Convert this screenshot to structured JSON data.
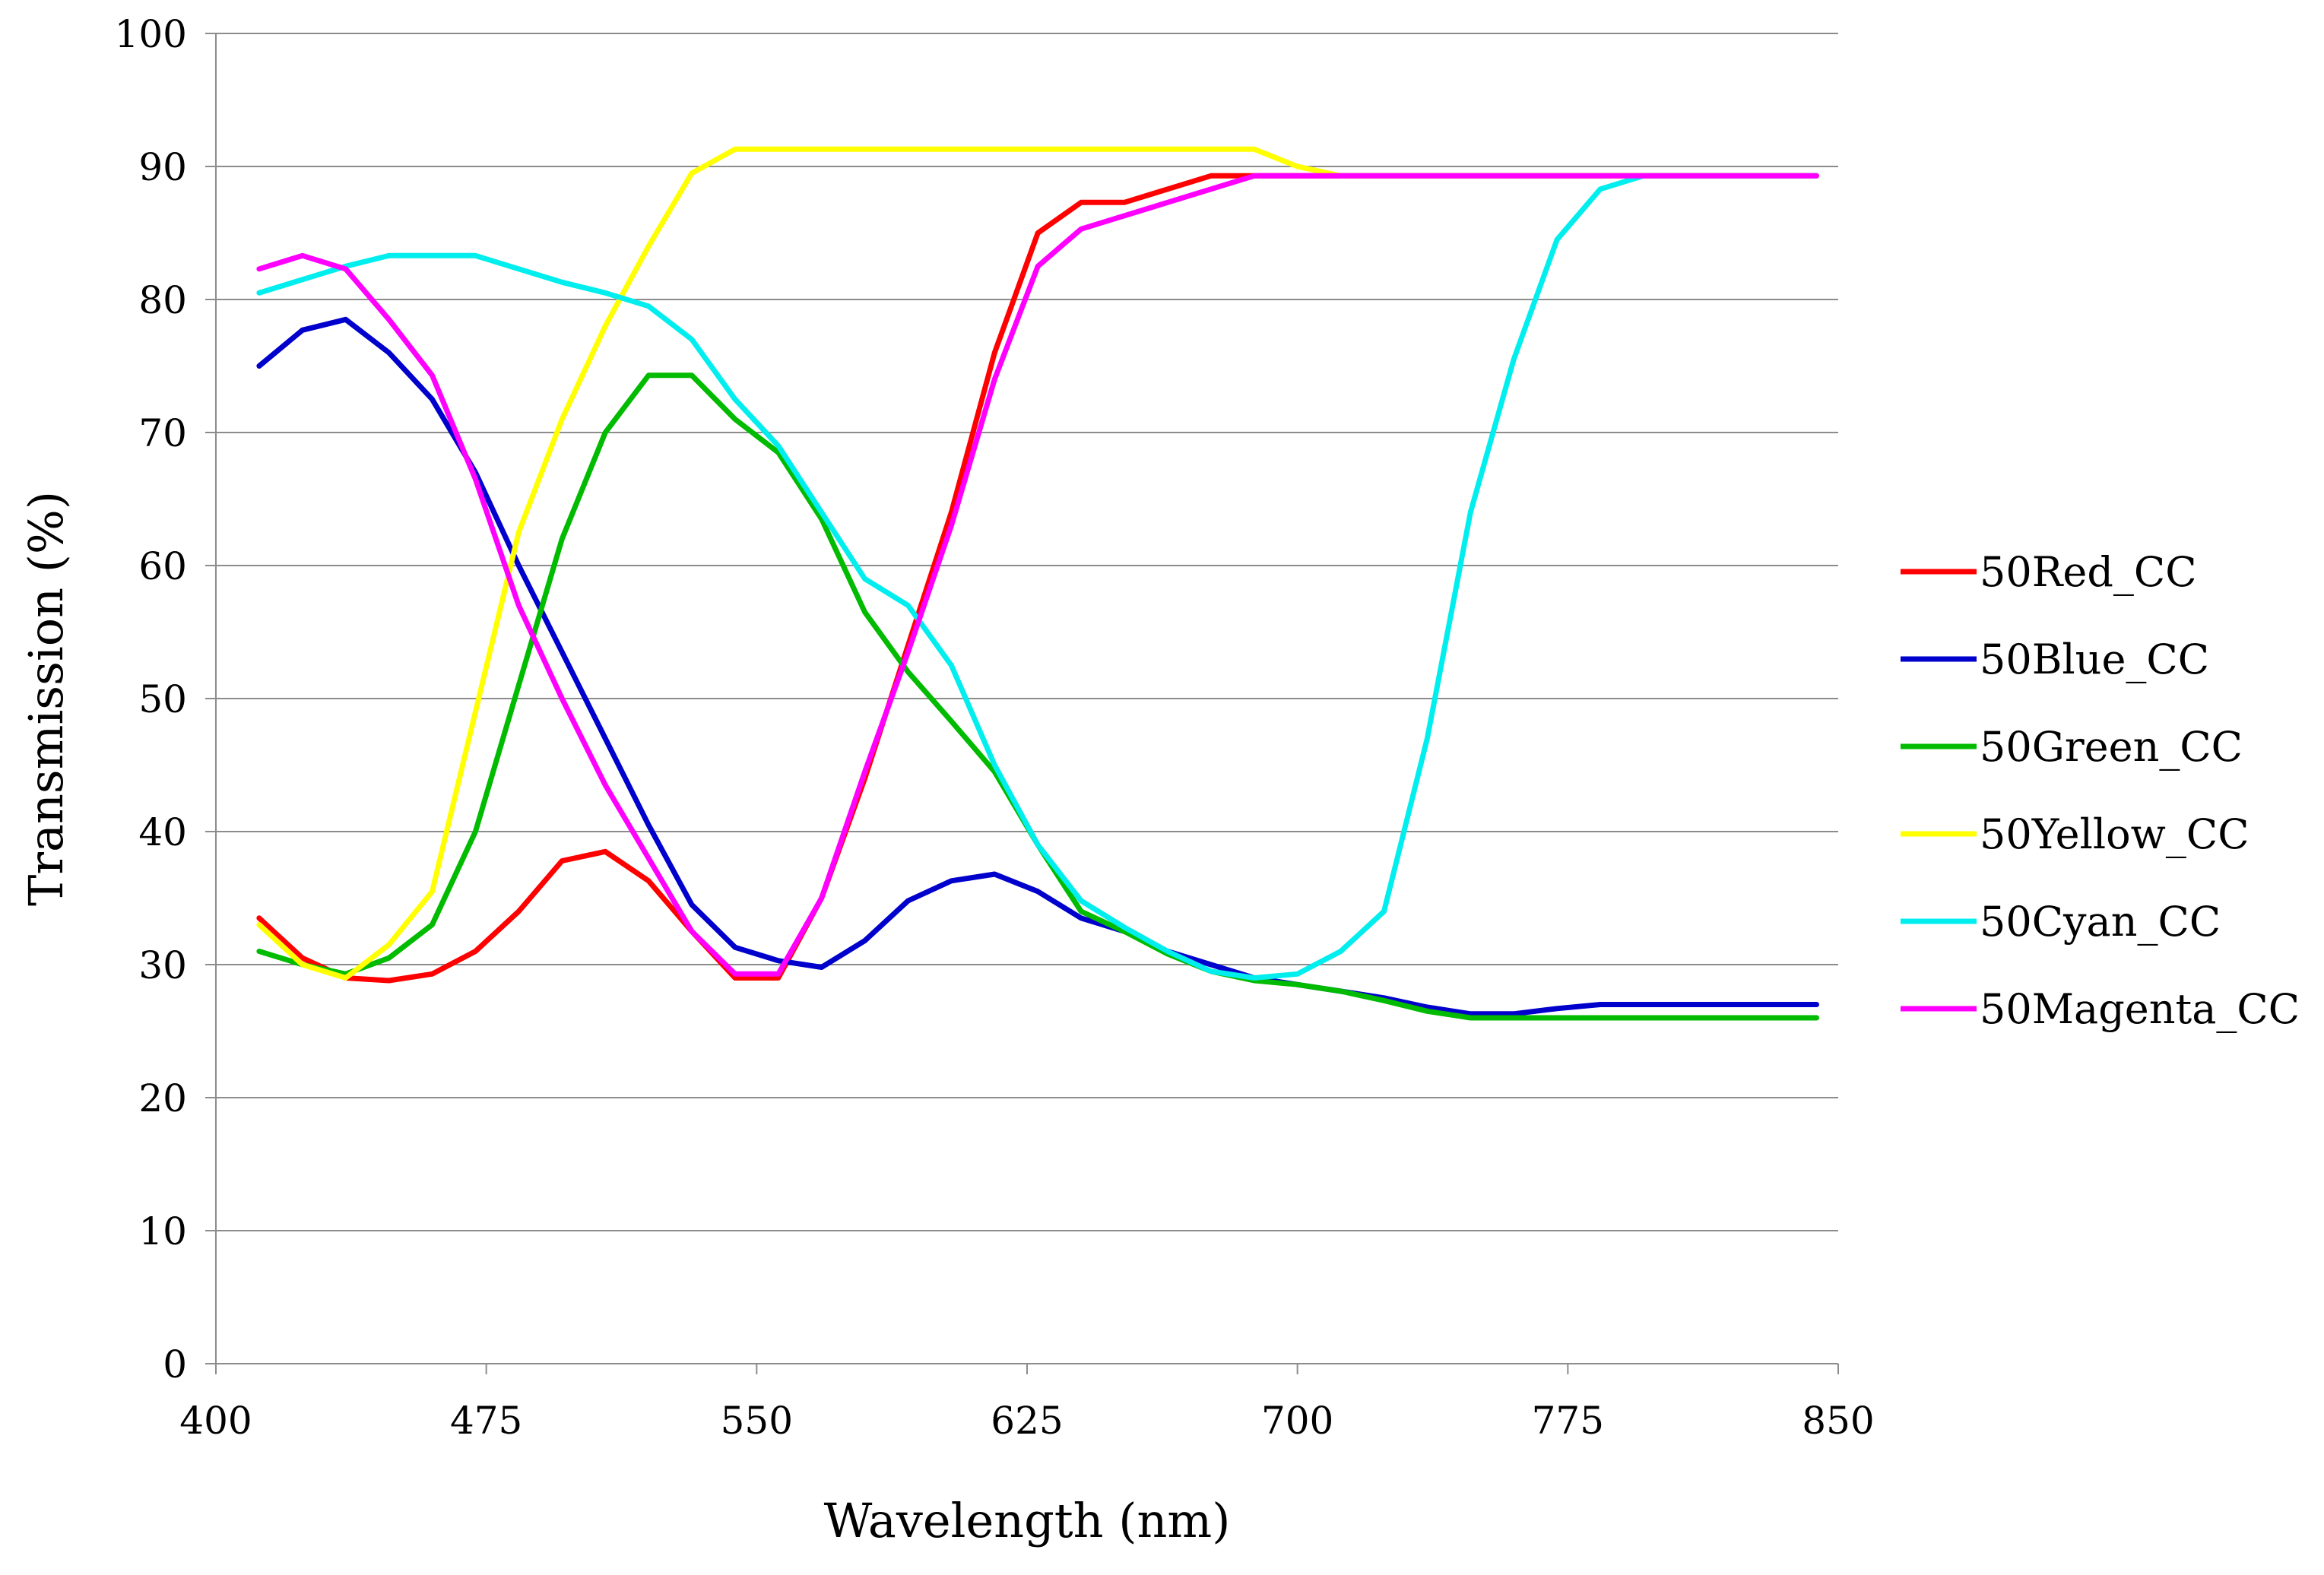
{
  "chart_data": {
    "type": "line",
    "title": "",
    "xlabel": "Wavelength (nm)",
    "ylabel": "Transmission (%)",
    "xlim": [
      400,
      850
    ],
    "ylim": [
      0,
      100
    ],
    "x_ticks": [
      400,
      475,
      550,
      625,
      700,
      775,
      850
    ],
    "y_ticks": [
      0,
      10,
      20,
      30,
      40,
      50,
      60,
      70,
      80,
      90,
      100
    ],
    "grid": "horizontal",
    "legend_position": "right",
    "x": [
      412,
      424,
      436,
      448,
      460,
      472,
      484,
      496,
      508,
      520,
      532,
      544,
      556,
      568,
      580,
      592,
      604,
      616,
      628,
      640,
      652,
      664,
      676,
      688,
      700,
      712,
      724,
      736,
      748,
      760,
      772,
      784,
      796,
      808,
      820,
      832,
      844
    ],
    "series": [
      {
        "name": "50Red_CC",
        "color": "#ff0000",
        "values": [
          33.5,
          30.5,
          29.0,
          28.8,
          29.3,
          31.0,
          34.0,
          37.8,
          38.5,
          36.3,
          32.5,
          29.0,
          29.0,
          35.0,
          44.0,
          54.0,
          64.0,
          76.0,
          85.0,
          87.3,
          87.3,
          88.3,
          89.3,
          89.3,
          89.3,
          89.3,
          89.3,
          89.3,
          89.3,
          89.3,
          89.3,
          89.3,
          89.3,
          89.3,
          89.3,
          89.3,
          89.3
        ]
      },
      {
        "name": "50Blue_CC",
        "color": "#0000cc",
        "values": [
          75.0,
          77.7,
          78.5,
          76.0,
          72.5,
          67.0,
          60.0,
          53.5,
          47.0,
          40.5,
          34.5,
          31.3,
          30.3,
          29.8,
          31.8,
          34.8,
          36.3,
          36.8,
          35.5,
          33.5,
          32.5,
          31.0,
          30.0,
          29.0,
          28.5,
          28.0,
          27.5,
          26.8,
          26.3,
          26.3,
          26.7,
          27.0,
          27.0,
          27.0,
          27.0,
          27.0,
          27.0
        ]
      },
      {
        "name": "50Green_CC",
        "color": "#00bb00",
        "values": [
          31.0,
          30.0,
          29.3,
          30.5,
          33.0,
          40.0,
          51.0,
          62.0,
          70.0,
          74.3,
          74.3,
          71.0,
          68.5,
          63.5,
          56.5,
          52.0,
          48.3,
          44.5,
          39.0,
          34.0,
          32.5,
          30.8,
          29.5,
          28.8,
          28.5,
          28.0,
          27.3,
          26.5,
          26.0,
          26.0,
          26.0,
          26.0,
          26.0,
          26.0,
          26.0,
          26.0,
          26.0
        ]
      },
      {
        "name": "50Yellow_CC",
        "color": "#ffff00",
        "values": [
          33.0,
          30.0,
          29.0,
          31.5,
          35.5,
          49.0,
          62.5,
          71.0,
          78.0,
          84.0,
          89.5,
          91.3,
          91.3,
          91.3,
          91.3,
          91.3,
          91.3,
          91.3,
          91.3,
          91.3,
          91.3,
          91.3,
          91.3,
          91.3,
          90.0,
          89.3,
          89.3,
          89.3,
          89.3,
          89.3,
          89.3,
          89.3,
          89.3,
          89.3,
          89.3,
          89.3,
          89.3
        ]
      },
      {
        "name": "50Cyan_CC",
        "color": "#00eeee",
        "values": [
          80.5,
          81.5,
          82.5,
          83.3,
          83.3,
          83.3,
          82.3,
          81.3,
          80.5,
          79.5,
          77.0,
          72.5,
          69.0,
          64.0,
          59.0,
          57.0,
          52.5,
          45.0,
          39.0,
          34.8,
          32.8,
          31.0,
          29.5,
          29.0,
          29.3,
          31.0,
          34.0,
          47.0,
          64.0,
          75.5,
          84.5,
          88.3,
          89.3,
          89.3,
          89.3,
          89.3,
          89.3
        ]
      },
      {
        "name": "50Magenta_CC",
        "color": "#ff00ff",
        "values": [
          82.3,
          83.3,
          82.3,
          78.5,
          74.3,
          66.5,
          57.0,
          50.0,
          43.5,
          38.0,
          32.5,
          29.3,
          29.3,
          35.0,
          44.5,
          53.5,
          63.0,
          74.0,
          82.5,
          85.3,
          86.3,
          87.3,
          88.3,
          89.3,
          89.3,
          89.3,
          89.3,
          89.3,
          89.3,
          89.3,
          89.3,
          89.3,
          89.3,
          89.3,
          89.3,
          89.3,
          89.3
        ]
      }
    ]
  }
}
